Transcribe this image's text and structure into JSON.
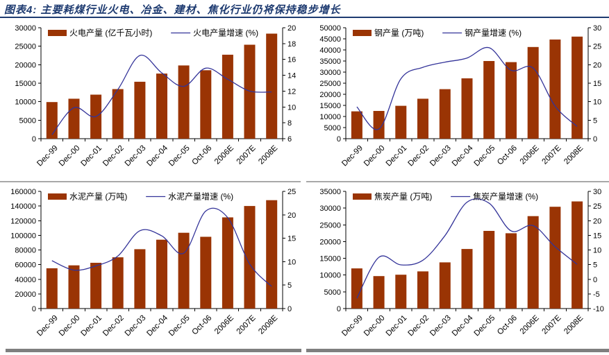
{
  "header": {
    "title": "图表4:  主要耗煤行业火电、冶金、建材、焦化行业仍将保持稳步增长"
  },
  "colors": {
    "title": "#1d3a70",
    "title_rule": "#1d3a70",
    "bar": "#9a3404",
    "line": "#333399",
    "axis": "#000000",
    "separator_light": "#a8a8a8",
    "separator_dark": "#7f7f7f"
  },
  "chart_data": [
    {
      "type": "bar+line",
      "name": "thermal-power",
      "legend": {
        "bar": "火电产量 (亿千瓦小时)",
        "line": "火电产量增速 (%)"
      },
      "categories": [
        "Dec-99",
        "Dec-00",
        "Dec-01",
        "Dec-02",
        "Dec-03",
        "Dec-04",
        "Dec-05",
        "Oct-06",
        "2006E",
        "2007E",
        "2008E"
      ],
      "bars": [
        9900,
        10800,
        11900,
        13400,
        15400,
        17600,
        19800,
        18500,
        22700,
        25400,
        28400
      ],
      "line": [
        6.5,
        9.9,
        8.8,
        12.2,
        16.5,
        14.3,
        12.6,
        14.9,
        13.5,
        12.0,
        11.9
      ],
      "left_axis": {
        "min": 0,
        "max": 30000,
        "ticks": [
          0,
          5000,
          10000,
          15000,
          20000,
          25000,
          30000
        ]
      },
      "right_axis": {
        "min": 6,
        "max": 20,
        "ticks": [
          6,
          8,
          10,
          12,
          14,
          16,
          18,
          20
        ]
      },
      "legend_position": "top",
      "grid": false
    },
    {
      "type": "bar+line",
      "name": "steel",
      "legend": {
        "bar": "钢产量 (万吨)",
        "line": "钢产量增速 (%)"
      },
      "categories": [
        "Dec-99",
        "Dec-00",
        "Dec-01",
        "Dec-02",
        "Dec-03",
        "Dec-04",
        "Dec-05",
        "Oct-06",
        "2006E",
        "2007E",
        "2008E"
      ],
      "bars": [
        12300,
        12500,
        14800,
        18000,
        22300,
        27200,
        35000,
        34500,
        41300,
        44700,
        46000
      ],
      "line": [
        8.6,
        2.6,
        16.2,
        19.3,
        20.7,
        21.8,
        24.6,
        18.5,
        19.1,
        8.8,
        3.3
      ],
      "left_axis": {
        "min": 0,
        "max": 50000,
        "ticks": [
          0,
          5000,
          10000,
          15000,
          20000,
          25000,
          30000,
          35000,
          40000,
          45000,
          50000
        ]
      },
      "right_axis": {
        "min": 0,
        "max": 30,
        "ticks": [
          0,
          5,
          10,
          15,
          20,
          25,
          30
        ]
      },
      "legend_position": "top",
      "grid": false
    },
    {
      "type": "bar+line",
      "name": "cement",
      "legend": {
        "bar": "水泥产量 (万吨)",
        "line": "水泥产量增速 (%)"
      },
      "categories": [
        "Dec-99",
        "Dec-00",
        "Dec-01",
        "Dec-02",
        "Dec-03",
        "Dec-04",
        "Dec-05",
        "Oct-06",
        "2006E",
        "2007E",
        "2008E"
      ],
      "bars": [
        55000,
        59000,
        62500,
        70000,
        81000,
        94000,
        103500,
        98000,
        124500,
        140000,
        148000
      ],
      "line": [
        10.2,
        8.2,
        9.1,
        11.2,
        16.6,
        15.5,
        11.8,
        20.8,
        19.4,
        9.5,
        4.7
      ],
      "left_axis": {
        "min": 0,
        "max": 160000,
        "ticks": [
          0,
          20000,
          40000,
          60000,
          80000,
          100000,
          120000,
          140000,
          160000
        ]
      },
      "right_axis": {
        "min": 0,
        "max": 25,
        "ticks": [
          0,
          5,
          10,
          15,
          20,
          25
        ]
      },
      "legend_position": "top",
      "grid": false
    },
    {
      "type": "bar+line",
      "name": "coke",
      "legend": {
        "bar": "焦炭产量 (万吨)",
        "line": "焦炭产量增速 (%)"
      },
      "categories": [
        "Dec-99",
        "Dec-00",
        "Dec-01",
        "Dec-02",
        "Dec-03",
        "Dec-04",
        "Dec-05",
        "Oct-06",
        "2006E",
        "2007E",
        "2008E"
      ],
      "bars": [
        12000,
        9700,
        10100,
        11100,
        13800,
        17800,
        23200,
        22500,
        27600,
        30400,
        32000
      ],
      "line": [
        -6.5,
        7.5,
        4.9,
        6.5,
        14.9,
        26.3,
        26.0,
        16.5,
        18.3,
        11.1,
        5.1
      ],
      "left_axis": {
        "min": 0,
        "max": 35000,
        "ticks": [
          0,
          5000,
          10000,
          15000,
          20000,
          25000,
          30000,
          35000
        ]
      },
      "right_axis": {
        "min": -10,
        "max": 30,
        "ticks": [
          -10,
          -5,
          0,
          5,
          10,
          15,
          20,
          25,
          30
        ]
      },
      "legend_position": "top",
      "grid": false
    }
  ]
}
